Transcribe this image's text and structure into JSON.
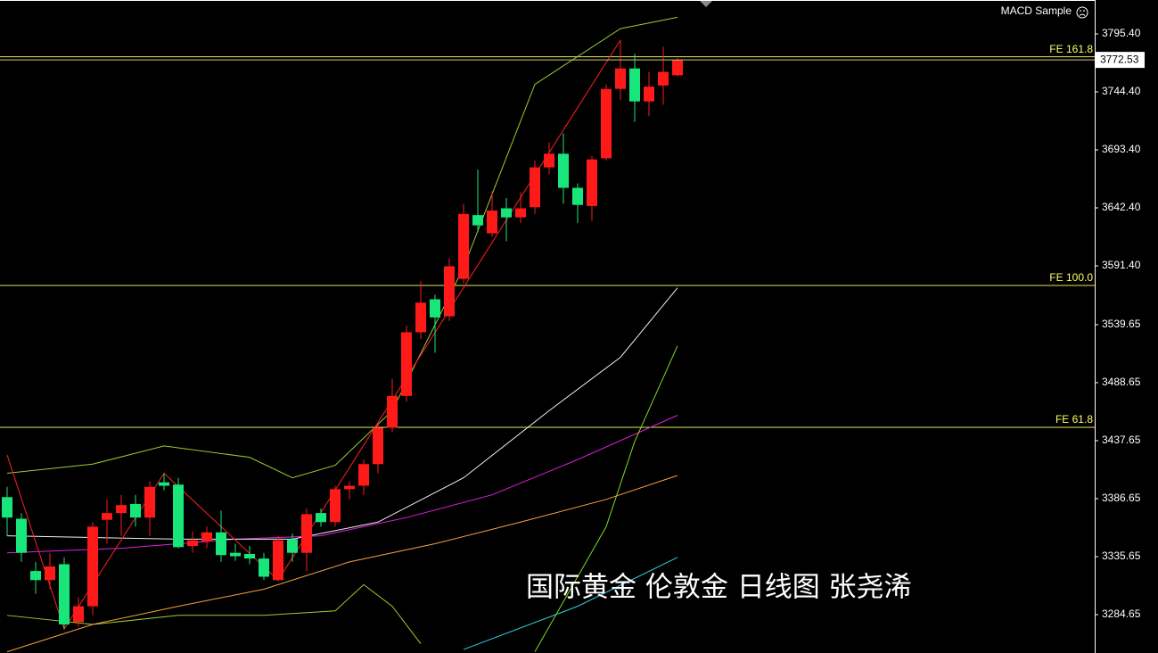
{
  "chart_data": {
    "type": "candlestick",
    "indicator_label": "MACD Sample",
    "watermark": "国际黄金 伦敦金 日线图 张尧浠",
    "bull_color": "#ff1a1a",
    "bear_color": "#19e67a",
    "candles": {
      "open": [
        3388,
        3369,
        3323,
        3315,
        3329,
        3278,
        3292,
        3368,
        3374,
        3382,
        3370,
        3401,
        3399,
        3345,
        3349,
        3357,
        3339,
        3338,
        3334,
        3315,
        3351,
        3339,
        3374,
        3366,
        3395,
        3398,
        3417,
        3449,
        3477,
        3533,
        3562,
        3547,
        3580,
        3636,
        3620,
        3642,
        3634,
        3643,
        3678,
        3690,
        3660,
        3644,
        3686,
        3747,
        3765,
        3736,
        3750,
        3759
      ],
      "high": [
        3397,
        3374,
        3331,
        3339,
        3335,
        3300,
        3366,
        3386,
        3390,
        3390,
        3402,
        3409,
        3405,
        3358,
        3362,
        3376,
        3347,
        3345,
        3339,
        3354,
        3356,
        3378,
        3378,
        3398,
        3402,
        3421,
        3452,
        3492,
        3539,
        3578,
        3566,
        3598,
        3646,
        3676,
        3657,
        3651,
        3656,
        3684,
        3700,
        3708,
        3664,
        3688,
        3751,
        3790,
        3778,
        3762,
        3784,
        3774
      ],
      "low": [
        3354,
        3331,
        3303,
        3307,
        3272,
        3274,
        3284,
        3347,
        3354,
        3362,
        3354,
        3394,
        3343,
        3339,
        3343,
        3331,
        3332,
        3329,
        3315,
        3314,
        3331,
        3323,
        3362,
        3362,
        3386,
        3390,
        3409,
        3445,
        3472,
        3527,
        3515,
        3543,
        3576,
        3621,
        3617,
        3613,
        3629,
        3637,
        3672,
        3646,
        3629,
        3631,
        3684,
        3737,
        3718,
        3723,
        3733,
        3758
      ],
      "close": [
        3370,
        3339,
        3315,
        3327,
        3276,
        3292,
        3362,
        3374,
        3381,
        3370,
        3397,
        3398,
        3344,
        3350,
        3357,
        3337,
        3336,
        3334,
        3318,
        3350,
        3339,
        3373,
        3366,
        3395,
        3398,
        3417,
        3449,
        3477,
        3533,
        3559,
        3546,
        3591,
        3637,
        3627,
        3640,
        3634,
        3642,
        3678,
        3690,
        3660,
        3645,
        3685,
        3747,
        3765,
        3736,
        3749,
        3762,
        3772.53
      ]
    },
    "ylim": [
      3250.9,
      3825.2
    ],
    "yticks": [
      {
        "value": 3795.4,
        "label": "3795.40"
      },
      {
        "value": 3744.4,
        "label": "3744.40"
      },
      {
        "value": 3693.4,
        "label": "3693.40"
      },
      {
        "value": 3642.4,
        "label": "3642.40"
      },
      {
        "value": 3591.4,
        "label": "3591.40"
      },
      3539.65,
      3488.65,
      3437.65,
      3386.65,
      3335.65,
      3284.65
    ],
    "last_price": 3772.53,
    "levels": [
      {
        "label": "FE 161.8",
        "value": 3775.3
      },
      {
        "label": "FE 100.0",
        "value": 3574.1
      },
      {
        "label": "FE 61.8",
        "value": 3449.4
      }
    ],
    "level_color": "#e6e65c",
    "indicators": [
      {
        "color": "#9acd32",
        "x": [
          0,
          6,
          11,
          17,
          20,
          23,
          27,
          32,
          37,
          43,
          47
        ],
        "values": [
          3409,
          3417,
          3433,
          3423,
          3405,
          3416,
          3464,
          3590,
          3751,
          3800,
          3810
        ]
      },
      {
        "color": "#9acd32",
        "x": [
          0,
          6,
          12,
          18,
          23,
          25,
          27,
          29
        ],
        "values": [
          3284,
          3276,
          3284,
          3284,
          3288,
          3311,
          3292,
          3259
        ]
      },
      {
        "color": "#f4a142",
        "x": [
          0,
          6,
          12,
          18,
          24,
          30,
          36,
          42,
          47
        ],
        "values": [
          3252,
          3276,
          3292,
          3307,
          3331,
          3347,
          3366,
          3386,
          3407
        ]
      },
      {
        "color": "#e020e0",
        "x": [
          0,
          8,
          16,
          22,
          28,
          34,
          40,
          47
        ],
        "values": [
          3339,
          3343,
          3351,
          3354,
          3370,
          3390,
          3421,
          3460
        ]
      },
      {
        "color": "#f0f0f0",
        "x": [
          0,
          12,
          20,
          26,
          32,
          38,
          43,
          47
        ],
        "values": [
          3354,
          3351,
          3351,
          3366,
          3405,
          3464,
          3511,
          3572
        ]
      },
      {
        "color": "#30d0e0",
        "x": [
          32,
          40,
          47
        ],
        "values": [
          3254,
          3292,
          3335
        ]
      },
      {
        "color": "#7ddc1f",
        "x": [
          37,
          42,
          44,
          47
        ],
        "values": [
          3252,
          3362,
          3437,
          3521
        ]
      },
      {
        "color": "#ff2020",
        "x": [
          0,
          4,
          11,
          19,
          43
        ],
        "values": [
          3425,
          3272,
          3409,
          3315,
          3790
        ]
      }
    ]
  }
}
